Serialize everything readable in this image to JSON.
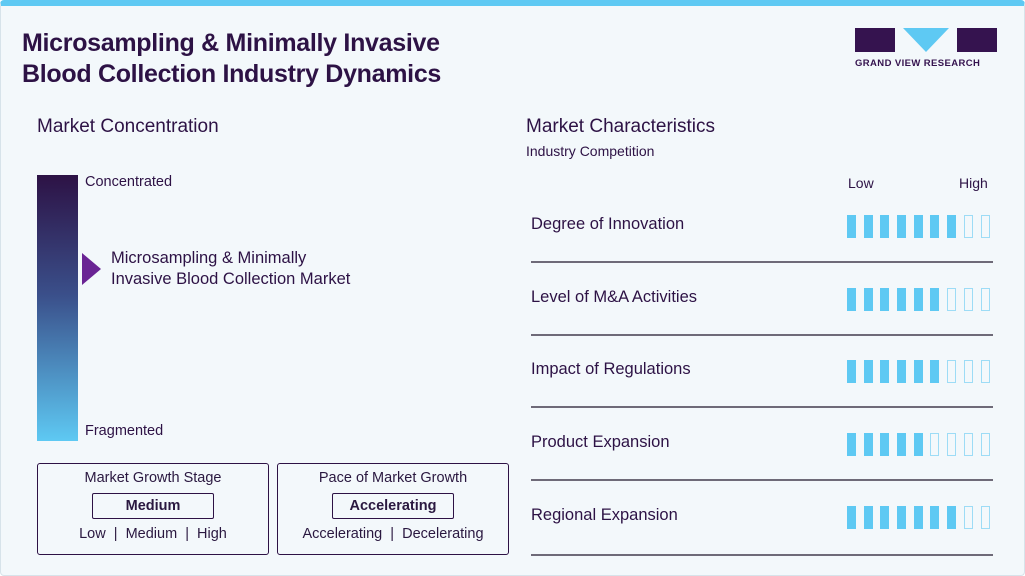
{
  "title_line1": "Microsampling & Minimally Invasive",
  "title_line2": "Blood Collection Industry Dynamics",
  "logo": {
    "text": "GRAND VIEW RESEARCH"
  },
  "concentration": {
    "heading": "Market Concentration",
    "top": "Concentrated",
    "bottom": "Fragmented",
    "market_line1": "Microsampling & Minimally",
    "market_line2": "Invasive Blood Collection Market"
  },
  "growth_stage": {
    "title": "Market Growth Stage",
    "value": "Medium",
    "options": "Low  |  Medium  |  High"
  },
  "pace": {
    "title": "Pace of Market Growth",
    "value": "Accelerating",
    "options": "Accelerating  |  Decelerating"
  },
  "characteristics": {
    "heading": "Market Characteristics",
    "subheading": "Industry Competition",
    "low": "Low",
    "high": "High",
    "items": [
      {
        "label": "Degree of Innovation",
        "level": 7,
        "max": 9
      },
      {
        "label": "Level of M&A Activities",
        "level": 6,
        "max": 9
      },
      {
        "label": "Impact of Regulations",
        "level": 6,
        "max": 9
      },
      {
        "label": "Product Expansion",
        "level": 5,
        "max": 9
      },
      {
        "label": "Regional Expansion",
        "level": 7,
        "max": 9
      }
    ]
  },
  "colors": {
    "accent": "#5ec9f3",
    "brand": "#2d1245",
    "arrow": "#6a2494"
  }
}
